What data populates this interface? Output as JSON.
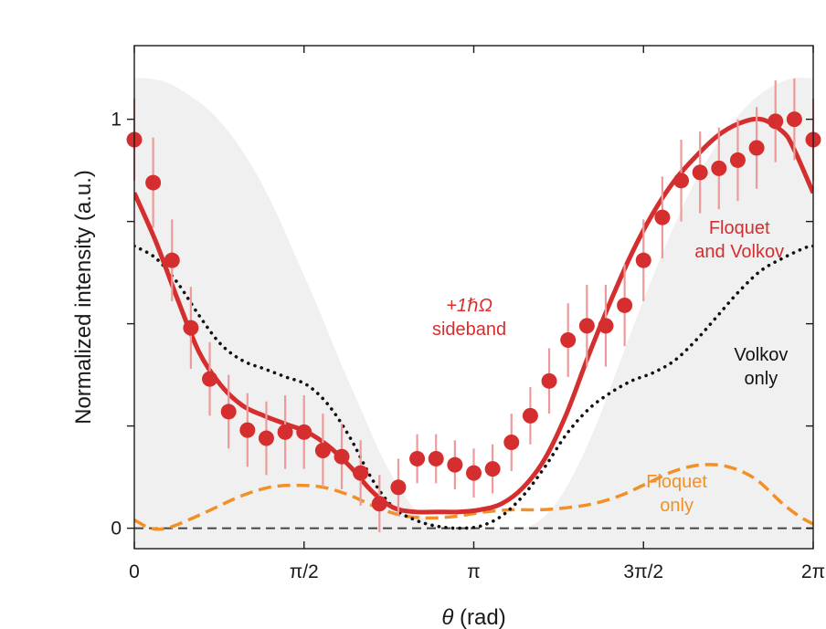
{
  "chart_data": {
    "type": "scatter",
    "xlabel_symbol": "θ",
    "xlabel_unit": " (rad)",
    "ylabel": "Normalized intensity (a.u.)",
    "xlim": [
      0,
      6.2832
    ],
    "ylim": [
      -0.05,
      1.18
    ],
    "x_ticks": [
      {
        "value": 0,
        "label": "0"
      },
      {
        "value": 1.5708,
        "label": "π/2"
      },
      {
        "value": 3.1416,
        "label": "π"
      },
      {
        "value": 4.7124,
        "label": "3π/2"
      },
      {
        "value": 6.2832,
        "label": "2π"
      }
    ],
    "y_ticks": [
      {
        "value": 0,
        "label": "0"
      },
      {
        "value": 0.25,
        "label": ""
      },
      {
        "value": 0.5,
        "label": ""
      },
      {
        "value": 0.75,
        "label": ""
      },
      {
        "value": 1,
        "label": "1"
      }
    ],
    "colors": {
      "measured": "#d42e2e",
      "errorbar": "#ec9a9a",
      "floquet_volkov": "#d42e2e",
      "volkov": "#111111",
      "floquet": "#f29026",
      "zero_line": "#444444",
      "shade": "#f0f0f0"
    },
    "series": [
      {
        "id": "measured",
        "style": "markers-with-errorbars",
        "x": [
          0.0,
          0.1745,
          0.3491,
          0.5236,
          0.6981,
          0.8727,
          1.0472,
          1.2217,
          1.3963,
          1.5708,
          1.7453,
          1.9199,
          2.0944,
          2.2689,
          2.4435,
          2.618,
          2.7925,
          2.9671,
          3.1416,
          3.3161,
          3.4907,
          3.6652,
          3.8397,
          4.0143,
          4.1888,
          4.3633,
          4.5379,
          4.7124,
          4.8869,
          5.0615,
          5.236,
          5.4105,
          5.5851,
          5.7596,
          5.9341,
          6.1087,
          6.2832
        ],
        "y": [
          0.95,
          0.845,
          0.655,
          0.49,
          0.365,
          0.285,
          0.24,
          0.22,
          0.235,
          0.235,
          0.19,
          0.175,
          0.135,
          0.06,
          0.1,
          0.17,
          0.17,
          0.155,
          0.135,
          0.145,
          0.21,
          0.275,
          0.36,
          0.46,
          0.495,
          0.495,
          0.545,
          0.655,
          0.76,
          0.85,
          0.87,
          0.88,
          0.9,
          0.93,
          0.995,
          1.0,
          0.95
        ],
        "err": [
          0.1,
          0.11,
          0.1,
          0.1,
          0.09,
          0.09,
          0.09,
          0.09,
          0.09,
          0.09,
          0.09,
          0.08,
          0.08,
          0.07,
          0.07,
          0.06,
          0.06,
          0.06,
          0.06,
          0.06,
          0.07,
          0.07,
          0.08,
          0.09,
          0.1,
          0.1,
          0.1,
          0.1,
          0.1,
          0.1,
          0.1,
          0.1,
          0.1,
          0.1,
          0.1,
          0.1,
          0.1
        ]
      },
      {
        "id": "floquet_volkov",
        "name": "Floquet and Volkov",
        "style": "solid",
        "x": [
          0.0,
          0.2,
          0.4,
          0.6,
          0.8,
          1.0,
          1.2,
          1.4,
          1.6,
          1.8,
          2.0,
          2.2,
          2.4,
          2.6,
          2.8,
          3.0,
          3.2,
          3.4,
          3.6,
          3.8,
          4.0,
          4.2,
          4.4,
          4.6,
          4.8,
          5.0,
          5.2,
          5.4,
          5.6,
          5.8,
          6.0,
          6.1,
          6.2832
        ],
        "y": [
          0.82,
          0.7,
          0.56,
          0.43,
          0.35,
          0.3,
          0.275,
          0.255,
          0.235,
          0.2,
          0.15,
          0.09,
          0.05,
          0.04,
          0.04,
          0.04,
          0.045,
          0.06,
          0.1,
          0.17,
          0.28,
          0.42,
          0.55,
          0.67,
          0.77,
          0.85,
          0.91,
          0.96,
          0.99,
          1.0,
          0.97,
          0.93,
          0.82
        ]
      },
      {
        "id": "volkov",
        "name": "Volkov only",
        "style": "dotted",
        "x": [
          0.0,
          0.2,
          0.4,
          0.6,
          0.8,
          1.0,
          1.2,
          1.4,
          1.6,
          1.8,
          2.0,
          2.2,
          2.4,
          2.6,
          2.8,
          3.0,
          3.2,
          3.4,
          3.6,
          3.8,
          4.0,
          4.2,
          4.4,
          4.6,
          4.8,
          5.0,
          5.2,
          5.4,
          5.6,
          5.8,
          6.0,
          6.2,
          6.2832
        ],
        "y": [
          0.69,
          0.66,
          0.6,
          0.52,
          0.45,
          0.41,
          0.39,
          0.37,
          0.35,
          0.3,
          0.22,
          0.12,
          0.05,
          0.02,
          0.005,
          0.0,
          0.005,
          0.03,
          0.08,
          0.15,
          0.23,
          0.29,
          0.33,
          0.36,
          0.38,
          0.41,
          0.46,
          0.52,
          0.58,
          0.63,
          0.66,
          0.685,
          0.69
        ]
      },
      {
        "id": "floquet",
        "name": "Floquet only",
        "style": "dashed",
        "x": [
          0.0,
          0.15,
          0.3,
          0.5,
          0.75,
          1.0,
          1.25,
          1.5,
          1.75,
          2.0,
          2.25,
          2.5,
          2.75,
          3.0,
          3.25,
          3.5,
          3.75,
          4.0,
          4.25,
          4.5,
          4.75,
          5.0,
          5.25,
          5.5,
          5.75,
          6.0,
          6.15,
          6.2832
        ],
        "y": [
          0.02,
          0.0,
          0.0,
          0.02,
          0.05,
          0.08,
          0.1,
          0.105,
          0.1,
          0.08,
          0.05,
          0.03,
          0.025,
          0.03,
          0.04,
          0.045,
          0.045,
          0.05,
          0.06,
          0.08,
          0.11,
          0.14,
          0.155,
          0.15,
          0.12,
          0.06,
          0.03,
          0.01
        ]
      },
      {
        "id": "shade",
        "style": "filled-area",
        "x": [
          0.0,
          0.1,
          0.3,
          0.5,
          0.7,
          0.9,
          1.1,
          1.3,
          1.5,
          1.7,
          1.9,
          2.1,
          2.3,
          2.5,
          2.7,
          2.9,
          3.1,
          3.3,
          3.5,
          3.7,
          3.9,
          4.1,
          4.3,
          4.5,
          4.7,
          4.9,
          5.1,
          5.3,
          5.5,
          5.7,
          5.9,
          6.1,
          6.2832
        ],
        "y": [
          1.1,
          1.1,
          1.09,
          1.06,
          1.02,
          0.96,
          0.88,
          0.78,
          0.66,
          0.54,
          0.41,
          0.29,
          0.17,
          0.08,
          0.02,
          0.0,
          0.0,
          0.0,
          0.0,
          0.01,
          0.06,
          0.15,
          0.27,
          0.41,
          0.55,
          0.68,
          0.8,
          0.9,
          0.98,
          1.04,
          1.08,
          1.1,
          1.1
        ]
      },
      {
        "id": "zero",
        "style": "dashed-reference",
        "x": [
          0,
          6.2832
        ],
        "y": [
          0,
          0
        ]
      }
    ],
    "annotations": [
      {
        "id": "sideband",
        "lines": [
          "+1ℏΩ",
          "sideband"
        ],
        "x": 3.1,
        "y": 0.53,
        "color": "#d42e2e",
        "italic_first": true
      },
      {
        "id": "floquet-volkov",
        "lines": [
          "Floquet",
          "and Volkov"
        ],
        "x": 5.6,
        "y": 0.72,
        "color": "#d42e2e"
      },
      {
        "id": "volkov",
        "lines": [
          "Volkov",
          "only"
        ],
        "x": 5.8,
        "y": 0.41,
        "color": "#111111"
      },
      {
        "id": "floquet",
        "lines": [
          "Floquet",
          "only"
        ],
        "x": 5.02,
        "y": 0.1,
        "color": "#f29026"
      }
    ]
  }
}
